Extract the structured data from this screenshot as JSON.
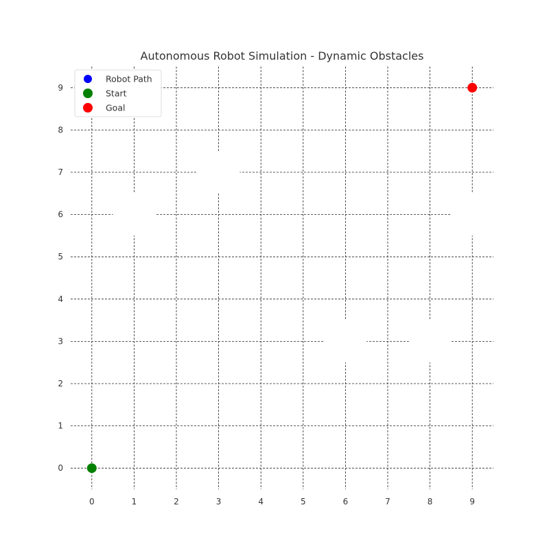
{
  "chart_data": {
    "type": "scatter",
    "title": "Autonomous Robot Simulation - Dynamic Obstacles",
    "xlabel": "",
    "ylabel": "",
    "xlim": [
      -0.5,
      9.5
    ],
    "ylim": [
      -0.5,
      9.5
    ],
    "xticks": [
      0,
      1,
      2,
      3,
      4,
      5,
      6,
      7,
      8,
      9
    ],
    "yticks": [
      0,
      1,
      2,
      3,
      4,
      5,
      6,
      7,
      8,
      9
    ],
    "grid": true,
    "legend_position": "top-left",
    "series": [
      {
        "name": "Robot Path",
        "color": "#0000ff",
        "points": []
      },
      {
        "name": "Start",
        "color": "#008000",
        "points": [
          [
            0,
            0
          ]
        ]
      },
      {
        "name": "Goal",
        "color": "#ff0000",
        "points": [
          [
            9,
            9
          ]
        ]
      }
    ],
    "obstacles": {
      "color": "#ffffff",
      "cells": [
        [
          1,
          6
        ],
        [
          3,
          7
        ],
        [
          6,
          3
        ],
        [
          8,
          3
        ],
        [
          9,
          6
        ]
      ]
    }
  }
}
